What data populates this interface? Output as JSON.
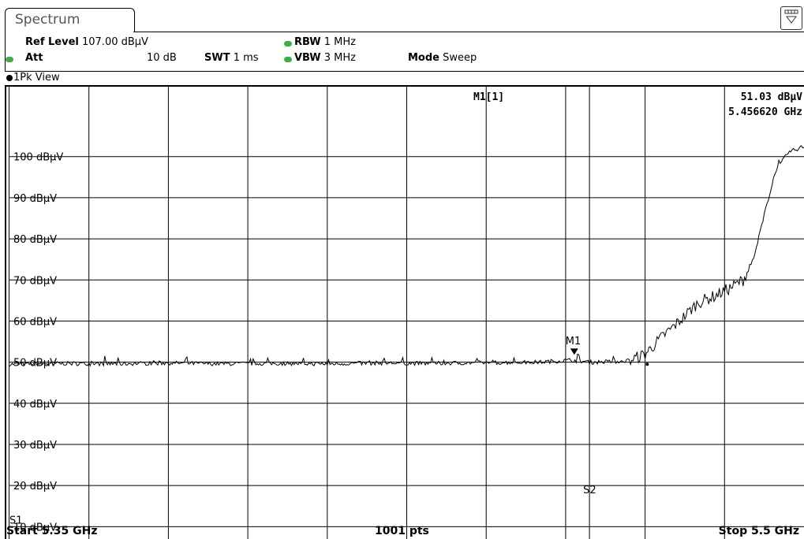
{
  "tab": {
    "title": "Spectrum"
  },
  "header": {
    "ref_level_label": "Ref Level",
    "ref_level_value": "107.00 dBµV",
    "att_label": "Att",
    "att_value": "10 dB",
    "swt_label": "SWT",
    "swt_value": "1 ms",
    "rbw_label": "RBW",
    "rbw_value": "1 MHz",
    "vbw_label": "VBW",
    "vbw_value": "3 MHz",
    "mode_label": "Mode",
    "mode_value": "Sweep"
  },
  "view": {
    "label": "1Pk View"
  },
  "marker_readout": {
    "name": "M1[1]",
    "level": "51.03 dBµV",
    "frequency": "5.456620 GHz"
  },
  "footer": {
    "start": "Start 5.35 GHz",
    "points": "1001 pts",
    "stop": "Stop 5.5 GHz"
  },
  "chart_data": {
    "type": "line",
    "xlim": [
      5.35,
      5.5
    ],
    "ylim": [
      7,
      117
    ],
    "x_unit": "GHz",
    "y_unit": "dBµV",
    "grid": true,
    "y_tick_labels": [
      "100 dBµV",
      "90 dBµV",
      "80 dBµV",
      "70 dBµV",
      "60 dBµV",
      "50 dBµV",
      "40 dBµV",
      "30 dBµV",
      "20 dBµV",
      "10 dBµV"
    ],
    "y_tick_values": [
      100,
      90,
      80,
      70,
      60,
      50,
      40,
      30,
      20,
      10
    ],
    "series": [
      {
        "x": [
          5.35,
          5.36,
          5.37,
          5.38,
          5.39,
          5.4,
          5.41,
          5.42,
          5.43,
          5.44,
          5.45,
          5.456,
          5.46,
          5.465,
          5.4675,
          5.47,
          5.4735,
          5.4765,
          5.48,
          5.483,
          5.486,
          5.4885,
          5.4905,
          5.4925,
          5.4945,
          5.497,
          5.5
        ],
        "y": [
          49.5,
          49.7,
          49.6,
          49.8,
          49.6,
          49.7,
          49.6,
          49.8,
          49.7,
          49.9,
          50.0,
          50.5,
          50.0,
          50.2,
          50.6,
          52.0,
          56.5,
          60.0,
          64.5,
          66.0,
          68.0,
          70.0,
          75.0,
          86.0,
          96.0,
          101.0,
          102.5
        ]
      }
    ],
    "markers": [
      {
        "label": "M1",
        "x": 5.45662,
        "y": 51.03
      }
    ],
    "lines": [
      {
        "label": "S1",
        "orientation": "horizontal",
        "y": 10
      },
      {
        "label": "S2",
        "orientation": "vertical",
        "x": 5.4595
      }
    ]
  }
}
